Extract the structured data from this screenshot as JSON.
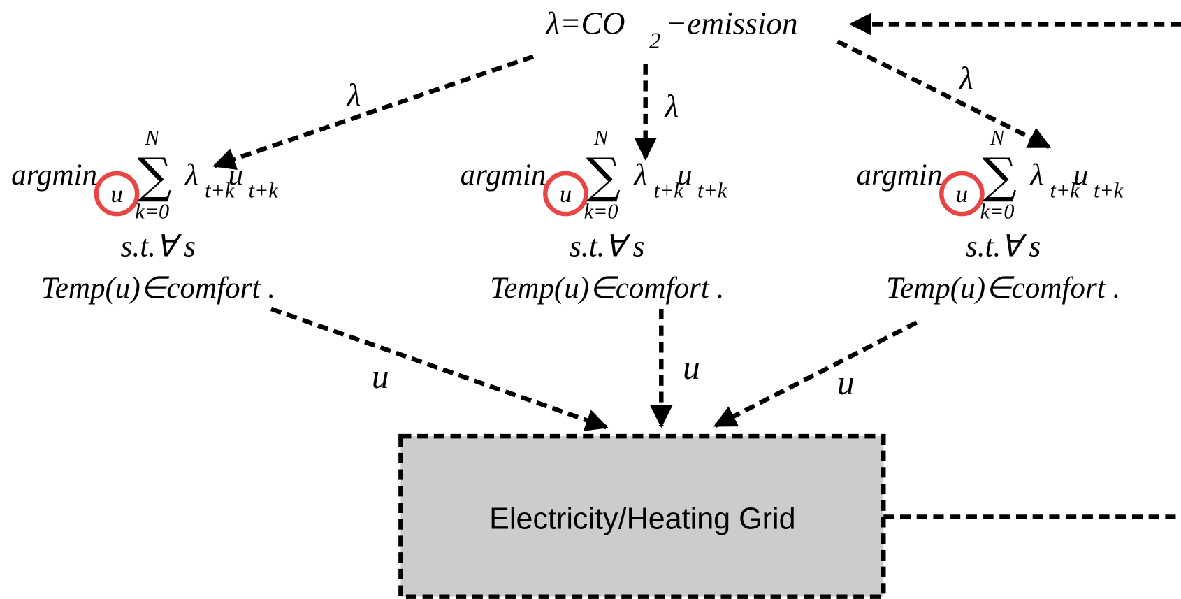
{
  "top_node": {
    "label": "λ=CO",
    "subscript": "2",
    "suffix": "−emission"
  },
  "edge_labels_down": [
    "λ",
    "λ",
    "λ"
  ],
  "edge_labels_up": [
    "u",
    "u",
    "u"
  ],
  "controllers": [
    {
      "argmin": "argmin",
      "var": "u",
      "sum": "∑",
      "upper": "N",
      "lower": "k=0",
      "weight": "λ",
      "weight_sub": "t+k",
      "control": "u",
      "control_sub": "t+k",
      "constraint": "s.t.∀ s",
      "condition": "Temp(u)∈comfort ."
    },
    {
      "argmin": "argmin",
      "var": "u",
      "sum": "∑",
      "upper": "N",
      "lower": "k=0",
      "weight": "λ",
      "weight_sub": "t+k",
      "control": "u",
      "control_sub": "t+k",
      "constraint": "s.t.∀ s",
      "condition": "Temp(u)∈comfort ."
    },
    {
      "argmin": "argmin",
      "var": "u",
      "sum": "∑",
      "upper": "N",
      "lower": "k=0",
      "weight": "λ",
      "weight_sub": "t+k",
      "control": "u",
      "control_sub": "t+k",
      "constraint": "s.t.∀ s",
      "condition": "Temp(u)∈comfort ."
    }
  ],
  "grid_box": {
    "label": "Electricity/Heating Grid"
  }
}
